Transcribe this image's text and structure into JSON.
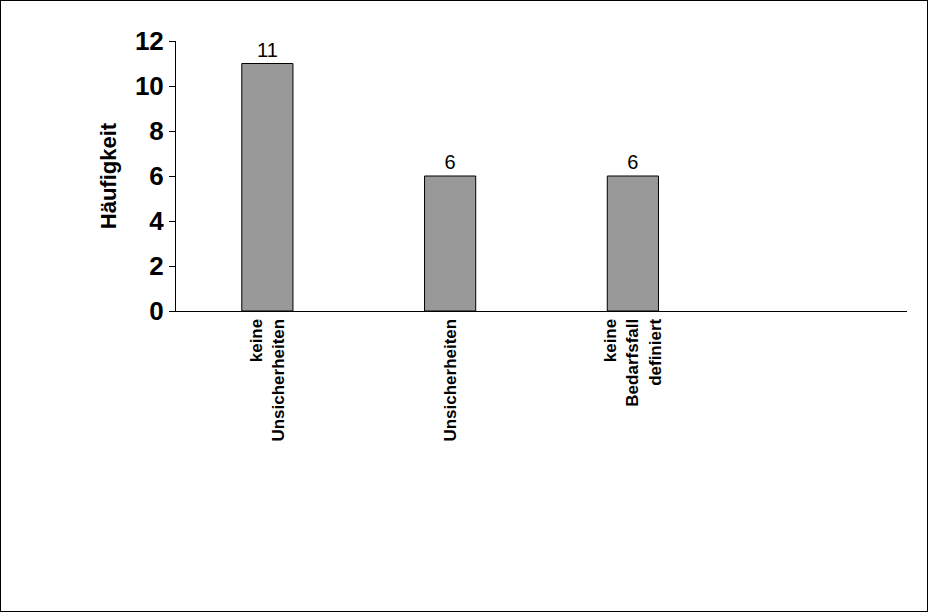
{
  "chart_data": {
    "type": "bar",
    "categories": [
      "keine Unsicherheiten",
      "Unsicherheiten",
      "keine Bedarfsfall definiert",
      null
    ],
    "values": [
      11,
      6,
      6,
      null
    ],
    "color": "#999999",
    "y_label": "Häufigkeit",
    "ylim": [
      0,
      12
    ],
    "yticks": [
      0,
      2,
      4,
      6,
      8,
      10,
      12
    ],
    "grid": false,
    "data_labels": true
  }
}
